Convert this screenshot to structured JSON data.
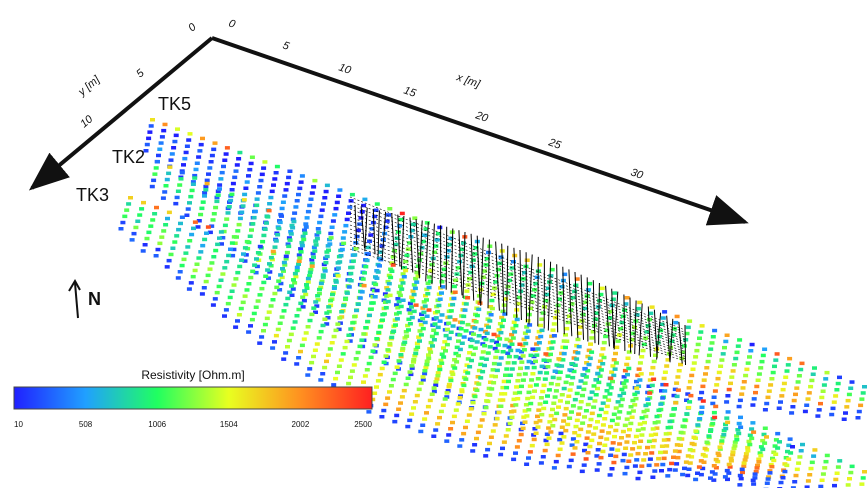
{
  "x_axis": {
    "title": "x [m]",
    "ticks": [
      "0",
      "5",
      "10",
      "15",
      "20",
      "25",
      "30"
    ]
  },
  "y_axis": {
    "title": "y [m]",
    "ticks": [
      "0",
      "5",
      "10"
    ]
  },
  "profiles": [
    {
      "name": "TK5"
    },
    {
      "name": "TK2"
    },
    {
      "name": "TK3"
    }
  ],
  "north_label": "N",
  "colorbar": {
    "title": "Resistivity [Ohm.m]",
    "ticks": [
      "10",
      "508",
      "1006",
      "1504",
      "2002",
      "2500"
    ],
    "colors": [
      "#2020ff",
      "#20a0ff",
      "#20ff60",
      "#e8ff20",
      "#ff9020",
      "#ff2020"
    ]
  },
  "colors": {
    "axis": "#111111",
    "mesh": "#000000",
    "background": "#ffffff"
  }
}
